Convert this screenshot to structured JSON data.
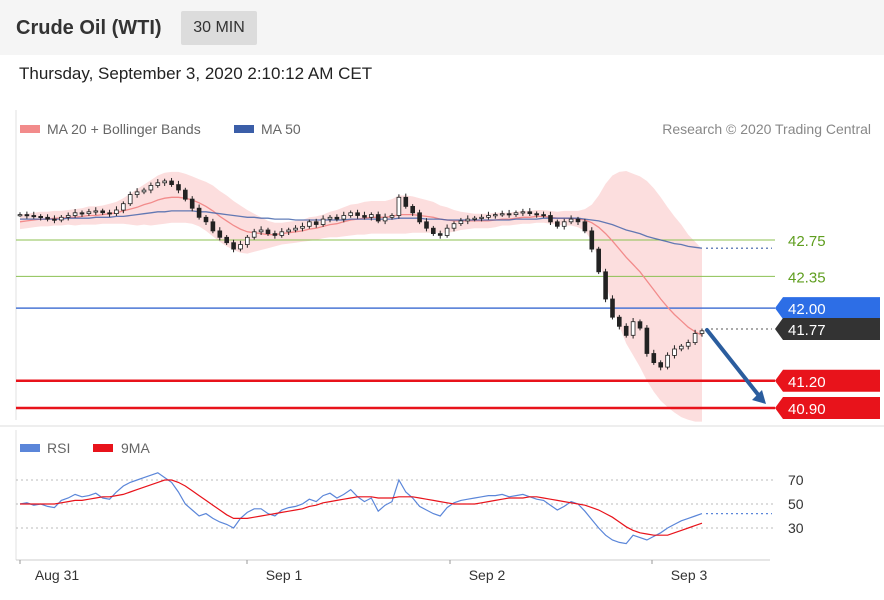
{
  "header": {
    "instrument": "Crude Oil (WTI)",
    "timeframe": "30 MIN",
    "datetime": "Thursday, September 3, 2020 2:10:12 AM CET"
  },
  "colors": {
    "ma20": "#f28b8b",
    "ma50": "#3b5ea8",
    "bollinger": "#fbd3d3",
    "green_level": "#8cc152",
    "blue_level": "#4a76d4",
    "red_level": "#e8131b",
    "price_tag": "#333333",
    "rsi": "#5b86d9",
    "rsi_ma": "#e8131b"
  },
  "chart_data": [
    {
      "type": "candlestick",
      "legend": [
        {
          "name": "MA 20 + Bollinger Bands",
          "color": "#f28b8b"
        },
        {
          "name": "MA 50",
          "color": "#3b5ea8"
        }
      ],
      "credit": "Research © 2020 Trading Central",
      "x_ticks": [
        "Aug 31",
        "Sep 1",
        "Sep 2",
        "Sep 3"
      ],
      "levels": [
        {
          "value": 42.75,
          "label": "42.75",
          "kind": "resistance",
          "color": "#8cc152"
        },
        {
          "value": 42.35,
          "label": "42.35",
          "kind": "resistance",
          "color": "#8cc152"
        },
        {
          "value": 42.0,
          "label": "42.00",
          "kind": "pivot",
          "color": "#4a76d4"
        },
        {
          "value": 41.77,
          "label": "41.77",
          "kind": "last",
          "color": "#333333"
        },
        {
          "value": 41.2,
          "label": "41.20",
          "kind": "support",
          "color": "#e8131b"
        },
        {
          "value": 40.9,
          "label": "40.90",
          "kind": "support",
          "color": "#e8131b"
        }
      ],
      "forecast_arrow": {
        "from": 41.77,
        "to": 40.9
      },
      "ylim": [
        40.8,
        43.2
      ],
      "closes": [
        43.03,
        43.02,
        43.01,
        43.0,
        42.98,
        42.97,
        43.0,
        43.02,
        43.05,
        43.04,
        43.06,
        43.07,
        43.05,
        43.04,
        43.08,
        43.15,
        43.25,
        43.28,
        43.3,
        43.35,
        43.38,
        43.4,
        43.36,
        43.3,
        43.2,
        43.1,
        43.0,
        42.95,
        42.85,
        42.78,
        42.72,
        42.65,
        42.7,
        42.78,
        42.84,
        42.86,
        42.82,
        42.8,
        42.84,
        42.86,
        42.88,
        42.9,
        42.95,
        42.92,
        42.98,
        43.0,
        42.98,
        43.02,
        43.05,
        43.02,
        43.0,
        43.03,
        42.96,
        43.0,
        43.02,
        43.22,
        43.12,
        43.05,
        42.95,
        42.88,
        42.82,
        42.8,
        42.88,
        42.93,
        42.96,
        42.98,
        42.99,
        43.0,
        43.02,
        43.03,
        43.04,
        43.03,
        43.05,
        43.06,
        43.04,
        43.03,
        43.02,
        42.95,
        42.9,
        42.95,
        42.98,
        42.95,
        42.85,
        42.65,
        42.4,
        42.1,
        41.9,
        41.8,
        41.7,
        41.85,
        41.78,
        41.5,
        41.4,
        41.35,
        41.48,
        41.55,
        41.58,
        41.62,
        41.72,
        41.75
      ],
      "ma20": [
        42.95,
        42.96,
        42.97,
        42.98,
        42.98,
        42.99,
        42.99,
        43.0,
        43.0,
        43.01,
        43.02,
        43.02,
        43.03,
        43.04,
        43.05,
        43.07,
        43.09,
        43.11,
        43.14,
        43.16,
        43.19,
        43.21,
        43.22,
        43.22,
        43.21,
        43.19,
        43.16,
        43.12,
        43.07,
        43.01,
        42.96,
        42.91,
        42.87,
        42.84,
        42.83,
        42.82,
        42.81,
        42.81,
        42.82,
        42.83,
        42.84,
        42.85,
        42.87,
        42.88,
        42.9,
        42.92,
        42.93,
        42.95,
        42.97,
        42.98,
        42.99,
        43.0,
        43.0,
        43.0,
        43.01,
        43.03,
        43.03,
        43.03,
        43.02,
        43.01,
        43.0,
        42.98,
        42.97,
        42.96,
        42.96,
        42.96,
        42.96,
        42.96,
        42.96,
        42.97,
        42.98,
        42.98,
        42.99,
        43.0,
        43.0,
        43.01,
        43.01,
        43.0,
        42.99,
        42.99,
        42.99,
        42.98,
        42.97,
        42.94,
        42.89,
        42.82,
        42.74,
        42.65,
        42.56,
        42.48,
        42.4,
        42.3,
        42.2,
        42.1,
        42.01,
        41.93,
        41.86,
        41.79,
        41.74,
        41.7
      ],
      "ma50": [
        42.98,
        42.98,
        42.98,
        42.98,
        42.98,
        42.98,
        42.98,
        42.99,
        42.99,
        42.99,
        42.99,
        43.0,
        43.0,
        43.0,
        43.01,
        43.01,
        43.02,
        43.03,
        43.04,
        43.05,
        43.06,
        43.06,
        43.07,
        43.07,
        43.07,
        43.07,
        43.06,
        43.06,
        43.05,
        43.04,
        43.03,
        43.02,
        43.01,
        43.0,
        43.0,
        42.99,
        42.99,
        42.98,
        42.98,
        42.98,
        42.97,
        42.97,
        42.97,
        42.97,
        42.97,
        42.97,
        42.97,
        42.97,
        42.98,
        42.98,
        42.98,
        42.98,
        42.98,
        42.98,
        42.98,
        42.99,
        42.99,
        42.99,
        42.99,
        42.98,
        42.98,
        42.98,
        42.97,
        42.97,
        42.97,
        42.97,
        42.97,
        42.97,
        42.97,
        42.97,
        42.97,
        42.97,
        42.98,
        42.98,
        42.98,
        42.98,
        42.99,
        42.99,
        42.99,
        42.99,
        42.99,
        42.99,
        42.98,
        42.97,
        42.96,
        42.94,
        42.92,
        42.89,
        42.86,
        42.84,
        42.82,
        42.79,
        42.77,
        42.75,
        42.73,
        42.71,
        42.7,
        42.68,
        42.67,
        42.66
      ],
      "bb_width": [
        0.08,
        0.08,
        0.08,
        0.08,
        0.08,
        0.08,
        0.08,
        0.08,
        0.09,
        0.09,
        0.1,
        0.1,
        0.1,
        0.11,
        0.12,
        0.14,
        0.17,
        0.2,
        0.22,
        0.25,
        0.27,
        0.28,
        0.28,
        0.28,
        0.27,
        0.26,
        0.26,
        0.27,
        0.28,
        0.28,
        0.28,
        0.27,
        0.26,
        0.24,
        0.21,
        0.18,
        0.15,
        0.13,
        0.12,
        0.12,
        0.12,
        0.12,
        0.13,
        0.13,
        0.13,
        0.14,
        0.15,
        0.16,
        0.17,
        0.17,
        0.18,
        0.18,
        0.18,
        0.18,
        0.19,
        0.21,
        0.21,
        0.2,
        0.19,
        0.18,
        0.17,
        0.15,
        0.14,
        0.12,
        0.1,
        0.09,
        0.08,
        0.08,
        0.08,
        0.08,
        0.07,
        0.07,
        0.07,
        0.07,
        0.07,
        0.07,
        0.07,
        0.07,
        0.07,
        0.08,
        0.08,
        0.09,
        0.12,
        0.2,
        0.35,
        0.55,
        0.72,
        0.85,
        0.95,
        1.0,
        1.05,
        1.1,
        1.12,
        1.12,
        1.1,
        1.08,
        1.06,
        1.02,
        0.99,
        0.95
      ]
    },
    {
      "type": "line",
      "legend": [
        {
          "name": "RSI",
          "color": "#5b86d9"
        },
        {
          "name": "9MA",
          "color": "#e8131b"
        }
      ],
      "ylim": [
        10,
        85
      ],
      "y_ticks": [
        70,
        50,
        30
      ],
      "rsi": [
        50,
        51,
        49,
        50,
        48,
        47,
        53,
        55,
        58,
        56,
        57,
        59,
        55,
        54,
        60,
        65,
        68,
        70,
        72,
        74,
        76,
        72,
        68,
        60,
        50,
        45,
        40,
        42,
        38,
        35,
        33,
        30,
        38,
        43,
        46,
        46,
        42,
        40,
        45,
        47,
        48,
        50,
        54,
        52,
        57,
        59,
        55,
        58,
        62,
        56,
        52,
        55,
        44,
        49,
        52,
        70,
        60,
        55,
        48,
        45,
        42,
        40,
        47,
        51,
        53,
        54,
        55,
        56,
        57,
        57,
        58,
        56,
        57,
        58,
        56,
        54,
        53,
        49,
        45,
        48,
        52,
        50,
        44,
        37,
        30,
        24,
        20,
        18,
        17,
        24,
        22,
        20,
        23,
        26,
        30,
        33,
        36,
        38,
        40,
        42
      ],
      "rsi_ma": [
        50,
        50,
        50,
        50,
        50,
        50,
        51,
        52,
        53,
        53,
        54,
        55,
        56,
        56,
        57,
        58,
        60,
        62,
        64,
        66,
        68,
        70,
        70,
        68,
        65,
        61,
        57,
        53,
        49,
        45,
        41,
        38,
        38,
        38,
        39,
        40,
        41,
        42,
        43,
        44,
        45,
        46,
        48,
        49,
        51,
        52,
        53,
        54,
        55,
        56,
        56,
        56,
        55,
        55,
        55,
        56,
        56,
        56,
        55,
        54,
        53,
        52,
        51,
        50,
        50,
        50,
        50,
        51,
        52,
        53,
        54,
        55,
        55,
        55,
        56,
        56,
        55,
        54,
        53,
        52,
        51,
        50,
        49,
        47,
        45,
        42,
        39,
        35,
        31,
        28,
        26,
        25,
        24,
        24,
        24,
        26,
        28,
        30,
        32,
        34
      ]
    }
  ]
}
